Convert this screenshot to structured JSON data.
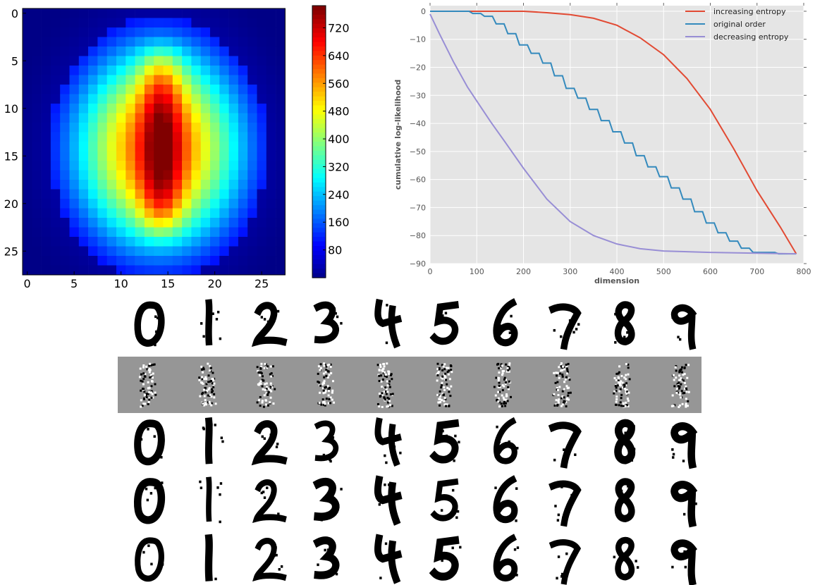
{
  "chart_data": [
    {
      "type": "heatmap",
      "title": "",
      "xlabel": "",
      "ylabel": "",
      "x_ticks": [
        "0",
        "5",
        "10",
        "15",
        "20",
        "25"
      ],
      "y_ticks": [
        "0",
        "5",
        "10",
        "15",
        "20",
        "25"
      ],
      "grid_size": 28,
      "colormap": "jet",
      "value_range": [
        0,
        784
      ],
      "colorbar_ticks": [
        "80",
        "160",
        "240",
        "320",
        "400",
        "480",
        "560",
        "640",
        "720"
      ],
      "colorbar_tick_values": [
        80,
        160,
        240,
        320,
        400,
        480,
        560,
        640,
        720
      ],
      "description_of_pattern": "bright vertical oval shaped like a zero; values highest (~760) in central column rows 4-22, medium (~450-600) around it, low (~20-150) at borders"
    },
    {
      "type": "line",
      "title": "",
      "xlabel": "dimension",
      "ylabel": "cumulative log-likelihood",
      "xlim": [
        0,
        800
      ],
      "ylim": [
        -90,
        2
      ],
      "x_ticks": [
        "0",
        "100",
        "200",
        "300",
        "400",
        "500",
        "600",
        "700",
        "800"
      ],
      "x_tick_values": [
        0,
        100,
        200,
        300,
        400,
        500,
        600,
        700,
        800
      ],
      "y_ticks": [
        "0",
        "−10",
        "−20",
        "−30",
        "−40",
        "−50",
        "−60",
        "−70",
        "−80",
        "−90"
      ],
      "y_tick_values": [
        0,
        -10,
        -20,
        -30,
        -40,
        -50,
        -60,
        -70,
        -80,
        -90
      ],
      "grid": true,
      "legend_position": "top-right",
      "series": [
        {
          "name": "increasing entropy",
          "color": "#e24a33",
          "points": [
            [
              0,
              0
            ],
            [
              100,
              0
            ],
            [
              200,
              0
            ],
            [
              250,
              -0.5
            ],
            [
              300,
              -1.2
            ],
            [
              350,
              -2.5
            ],
            [
              400,
              -5
            ],
            [
              450,
              -9.5
            ],
            [
              500,
              -15.5
            ],
            [
              550,
              -24
            ],
            [
              600,
              -35
            ],
            [
              650,
              -49
            ],
            [
              700,
              -64
            ],
            [
              750,
              -77
            ],
            [
              784,
              -86.5
            ]
          ]
        },
        {
          "name": "original order",
          "color": "#348abd",
          "points": [
            [
              0,
              0
            ],
            [
              50,
              0
            ],
            [
              75,
              0
            ],
            [
              100,
              -0.8
            ],
            [
              125,
              -1.8
            ],
            [
              150,
              -4.5
            ],
            [
              175,
              -8
            ],
            [
              200,
              -12
            ],
            [
              225,
              -15
            ],
            [
              250,
              -18.5
            ],
            [
              275,
              -23
            ],
            [
              300,
              -27.5
            ],
            [
              325,
              -31
            ],
            [
              350,
              -35
            ],
            [
              375,
              -39
            ],
            [
              400,
              -43
            ],
            [
              425,
              -47
            ],
            [
              450,
              -51.5
            ],
            [
              475,
              -55.5
            ],
            [
              500,
              -59
            ],
            [
              525,
              -63
            ],
            [
              550,
              -67
            ],
            [
              575,
              -71.5
            ],
            [
              600,
              -75.5
            ],
            [
              625,
              -79
            ],
            [
              650,
              -82
            ],
            [
              675,
              -84.5
            ],
            [
              700,
              -86
            ],
            [
              784,
              -86.5
            ]
          ]
        },
        {
          "name": "decreasing entropy",
          "color": "#988ed5",
          "points": [
            [
              0,
              -1
            ],
            [
              20,
              -8
            ],
            [
              50,
              -18
            ],
            [
              80,
              -27
            ],
            [
              100,
              -32
            ],
            [
              130,
              -39.5
            ],
            [
              160,
              -46.5
            ],
            [
              200,
              -56
            ],
            [
              250,
              -67
            ],
            [
              300,
              -75
            ],
            [
              350,
              -80
            ],
            [
              400,
              -83
            ],
            [
              450,
              -84.7
            ],
            [
              500,
              -85.5
            ],
            [
              600,
              -86
            ],
            [
              700,
              -86.3
            ],
            [
              784,
              -86.5
            ]
          ]
        }
      ]
    },
    {
      "type": "image_grid",
      "title": "",
      "rows": 5,
      "columns": 10,
      "row_styles": [
        "black-on-white",
        "noise-on-gray",
        "black-on-white",
        "black-on-white",
        "black-on-white"
      ],
      "digits_depicted": [
        0,
        1,
        2,
        3,
        4,
        5,
        6,
        7,
        8,
        9
      ]
    }
  ]
}
